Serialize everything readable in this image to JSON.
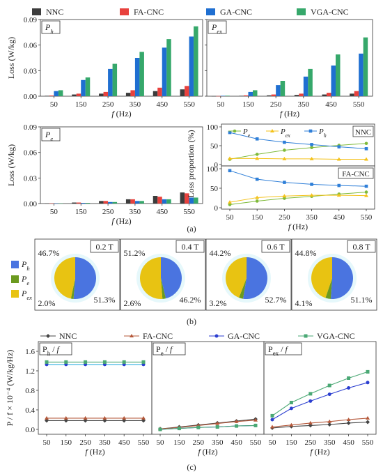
{
  "colors": {
    "NNC": "#3c3c3c",
    "FA-CNC": "#e8413d",
    "GA-CNC": "#1f6fd1",
    "VGA-CNC": "#36a86b",
    "pie_h": "#4a74e0",
    "pie_e": "#6b9a1f",
    "pie_ex": "#e8c312",
    "pie_bg": "#e6f8fb",
    "line_Pe": "#7fba3a",
    "line_Pex": "#f4c21b",
    "line_Ph": "#2f7fd8",
    "line_c_NNC": "#444444",
    "line_c_FA": "#b5583a",
    "line_c_GA": "#2c3fd0",
    "line_c_VGA": "#4aa874",
    "c_Ph_GA_color": "#32b0e0"
  },
  "icons": {
    "diamond": "NNC marker",
    "triangle": "FA-CNC marker",
    "circle": "GA-CNC marker",
    "square": "VGA-CNC marker"
  },
  "captions": {
    "a": "(a)",
    "b": "(b)",
    "c": "(c)"
  },
  "chart_data": [
    {
      "type": "bar",
      "panel": "a-Ph",
      "label": "P_h",
      "categories": [
        "50",
        "150",
        "250",
        "350",
        "450",
        "550"
      ],
      "series": [
        {
          "name": "NNC",
          "values": [
            0.0005,
            0.002,
            0.003,
            0.004,
            0.006,
            0.008
          ]
        },
        {
          "name": "FA-CNC",
          "values": [
            0.0008,
            0.003,
            0.005,
            0.007,
            0.01,
            0.012
          ]
        },
        {
          "name": "GA-CNC",
          "values": [
            0.006,
            0.019,
            0.032,
            0.045,
            0.057,
            0.07
          ]
        },
        {
          "name": "VGA-CNC",
          "values": [
            0.007,
            0.022,
            0.038,
            0.052,
            0.067,
            0.082
          ]
        }
      ],
      "xlabel": "f (Hz)",
      "ylabel": "Loss (W/kg)",
      "ylim": [
        0,
        0.09
      ],
      "yticks": [
        "0.00",
        "0.03",
        "0.06",
        "0.09"
      ]
    },
    {
      "type": "bar",
      "panel": "a-Pex",
      "label": "P_ex",
      "categories": [
        "50",
        "150",
        "250",
        "350",
        "450",
        "550"
      ],
      "series": [
        {
          "name": "NNC",
          "values": [
            0.0001,
            0.0005,
            0.001,
            0.0015,
            0.002,
            0.003
          ]
        },
        {
          "name": "FA-CNC",
          "values": [
            0.0002,
            0.001,
            0.002,
            0.003,
            0.004,
            0.006
          ]
        },
        {
          "name": "GA-CNC",
          "values": [
            0.0005,
            0.005,
            0.013,
            0.023,
            0.036,
            0.05
          ]
        },
        {
          "name": "VGA-CNC",
          "values": [
            0.0006,
            0.007,
            0.018,
            0.032,
            0.049,
            0.069
          ]
        }
      ],
      "xlabel": "f (Hz)",
      "ylim": [
        0,
        0.09
      ]
    },
    {
      "type": "bar",
      "panel": "a-Pe",
      "label": "P_e",
      "categories": [
        "50",
        "150",
        "250",
        "350",
        "450",
        "550"
      ],
      "series": [
        {
          "name": "NNC",
          "values": [
            0.0003,
            0.0012,
            0.003,
            0.005,
            0.009,
            0.013
          ]
        },
        {
          "name": "FA-CNC",
          "values": [
            0.0003,
            0.0012,
            0.003,
            0.005,
            0.008,
            0.012
          ]
        },
        {
          "name": "GA-CNC",
          "values": [
            0.0002,
            0.0008,
            0.0018,
            0.003,
            0.005,
            0.007
          ]
        },
        {
          "name": "VGA-CNC",
          "values": [
            0.0002,
            0.0008,
            0.0018,
            0.003,
            0.005,
            0.007
          ]
        }
      ],
      "xlabel": "f (Hz)",
      "ylabel": "Loss (W/kg)",
      "ylim": [
        0,
        0.09
      ],
      "yticks": [
        "0.00",
        "0.03",
        "0.06",
        "0.09"
      ]
    },
    {
      "type": "line",
      "panel": "a-proportion-NNC",
      "label": "NNC",
      "x": [
        50,
        150,
        250,
        350,
        450,
        550
      ],
      "series": [
        {
          "name": "P_e",
          "values": [
            14,
            27,
            38,
            45,
            51,
            56
          ]
        },
        {
          "name": "P_ex",
          "values": [
            16,
            16,
            15,
            15,
            14,
            14
          ]
        },
        {
          "name": "P_h",
          "values": [
            85,
            68,
            59,
            53,
            47,
            42
          ]
        }
      ],
      "ylabel": "Loss proportion (%)",
      "ylim": [
        0,
        100
      ],
      "yticks": [
        "0",
        "50",
        "100"
      ]
    },
    {
      "type": "line",
      "panel": "a-proportion-FA-CNC",
      "label": "FA-CNC",
      "x": [
        50,
        150,
        250,
        350,
        450,
        550
      ],
      "series": [
        {
          "name": "P_e",
          "values": [
            8,
            17,
            24,
            29,
            35,
            40
          ]
        },
        {
          "name": "P_ex",
          "values": [
            14,
            26,
            30,
            32,
            32,
            31
          ]
        },
        {
          "name": "P_h",
          "values": [
            95,
            73,
            65,
            60,
            57,
            55
          ]
        }
      ],
      "xlabel": "f (Hz)",
      "ylim": [
        0,
        100
      ],
      "yticks": [
        "0",
        "50",
        "100"
      ]
    },
    {
      "type": "pie",
      "panel": "b",
      "legend": [
        "P_h",
        "P_e",
        "P_ex"
      ],
      "pies": [
        {
          "label": "0.2 T",
          "values": {
            "P_h": 51.3,
            "P_e": 2.0,
            "P_ex": 46.7
          },
          "texts": {
            "P_h": "51.3%",
            "P_e": "2.0%",
            "P_ex": "46.7%"
          }
        },
        {
          "label": "0.4 T",
          "values": {
            "P_h": 46.2,
            "P_e": 2.6,
            "P_ex": 51.2
          },
          "texts": {
            "P_h": "46.2%",
            "P_e": "2.6%",
            "P_ex": "51.2%"
          }
        },
        {
          "label": "0.6 T",
          "values": {
            "P_h": 52.7,
            "P_e": 3.2,
            "P_ex": 44.2
          },
          "texts": {
            "P_h": "52.7%",
            "P_e": "3.2%",
            "P_ex": "44.2%"
          }
        },
        {
          "label": "0.8 T",
          "values": {
            "P_h": 51.1,
            "P_e": 4.1,
            "P_ex": 44.8
          },
          "texts": {
            "P_h": "51.1%",
            "P_e": "4.1%",
            "P_ex": "44.8%"
          }
        }
      ]
    },
    {
      "type": "line",
      "panel": "c",
      "legend": [
        "NNC",
        "FA-CNC",
        "GA-CNC",
        "VGA-CNC"
      ],
      "ylabel": "P / f × 10⁻⁴ (W/kg/Hz)",
      "xlabel": "f (Hz)",
      "x": [
        50,
        150,
        250,
        350,
        450,
        550
      ],
      "ylim": [
        -0.1,
        1.8
      ],
      "yticks": [
        "0.0",
        "0.4",
        "0.8",
        "1.2",
        "1.6"
      ],
      "subplots": [
        {
          "label": "Ph / f",
          "series": [
            {
              "name": "NNC",
              "values": [
                0.18,
                0.18,
                0.18,
                0.18,
                0.18,
                0.18
              ]
            },
            {
              "name": "FA-CNC",
              "values": [
                0.23,
                0.23,
                0.23,
                0.23,
                0.23,
                0.23
              ]
            },
            {
              "name": "GA-CNC",
              "values": [
                1.33,
                1.33,
                1.33,
                1.33,
                1.33,
                1.33
              ]
            },
            {
              "name": "VGA-CNC",
              "values": [
                1.38,
                1.38,
                1.38,
                1.38,
                1.38,
                1.38
              ]
            }
          ]
        },
        {
          "label": "Pe / f",
          "series": [
            {
              "name": "NNC",
              "values": [
                0.01,
                0.05,
                0.09,
                0.13,
                0.17,
                0.21
              ]
            },
            {
              "name": "FA-CNC",
              "values": [
                0.01,
                0.04,
                0.08,
                0.12,
                0.16,
                0.19
              ]
            },
            {
              "name": "GA-CNC",
              "values": [
                0.0,
                0.02,
                0.04,
                0.05,
                0.07,
                0.08
              ]
            },
            {
              "name": "VGA-CNC",
              "values": [
                0.0,
                0.02,
                0.04,
                0.05,
                0.07,
                0.08
              ]
            }
          ]
        },
        {
          "label": "Pex / f",
          "series": [
            {
              "name": "NNC",
              "values": [
                0.03,
                0.06,
                0.08,
                0.1,
                0.13,
                0.15
              ]
            },
            {
              "name": "FA-CNC",
              "values": [
                0.05,
                0.09,
                0.13,
                0.16,
                0.2,
                0.23
              ]
            },
            {
              "name": "GA-CNC",
              "values": [
                0.2,
                0.43,
                0.58,
                0.72,
                0.85,
                0.96
              ]
            },
            {
              "name": "VGA-CNC",
              "values": [
                0.28,
                0.55,
                0.73,
                0.9,
                1.05,
                1.18
              ]
            }
          ]
        }
      ]
    }
  ]
}
